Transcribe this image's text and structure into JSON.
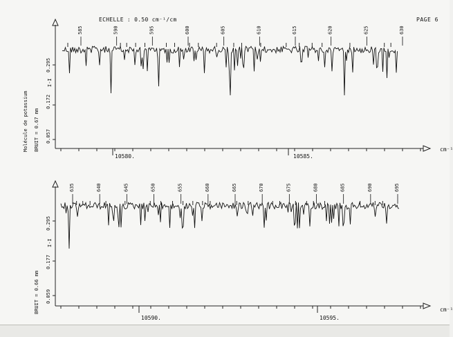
{
  "page": {
    "title": "ECHELLE :  0.50  cm⁻¹/cm",
    "page_label": "PAGE  6",
    "molecule_label": "Molécule de potassium",
    "x_unit": "cm⁻¹"
  },
  "panels": [
    {
      "bruit_label": "BRUIT =  0.67 mm",
      "y_axis_name": "I-I",
      "y_ticks": [
        "0.295",
        "0.172",
        "0.057"
      ],
      "x_ticks": [
        "10580.",
        "10585."
      ],
      "line_labels": [
        "585",
        "590",
        "595",
        "600",
        "605",
        "610",
        "615",
        "620",
        "625",
        "630"
      ]
    },
    {
      "bruit_label": "BRUIT =  0.66 mm",
      "y_axis_name": "I-I",
      "y_ticks": [
        "0.295",
        "0.177",
        "0.059"
      ],
      "x_ticks": [
        "10590.",
        "10595."
      ],
      "line_labels": [
        "635",
        "640",
        "645",
        "650",
        "655",
        "660",
        "665",
        "670",
        "675",
        "680",
        "685",
        "690",
        "695"
      ]
    }
  ]
}
